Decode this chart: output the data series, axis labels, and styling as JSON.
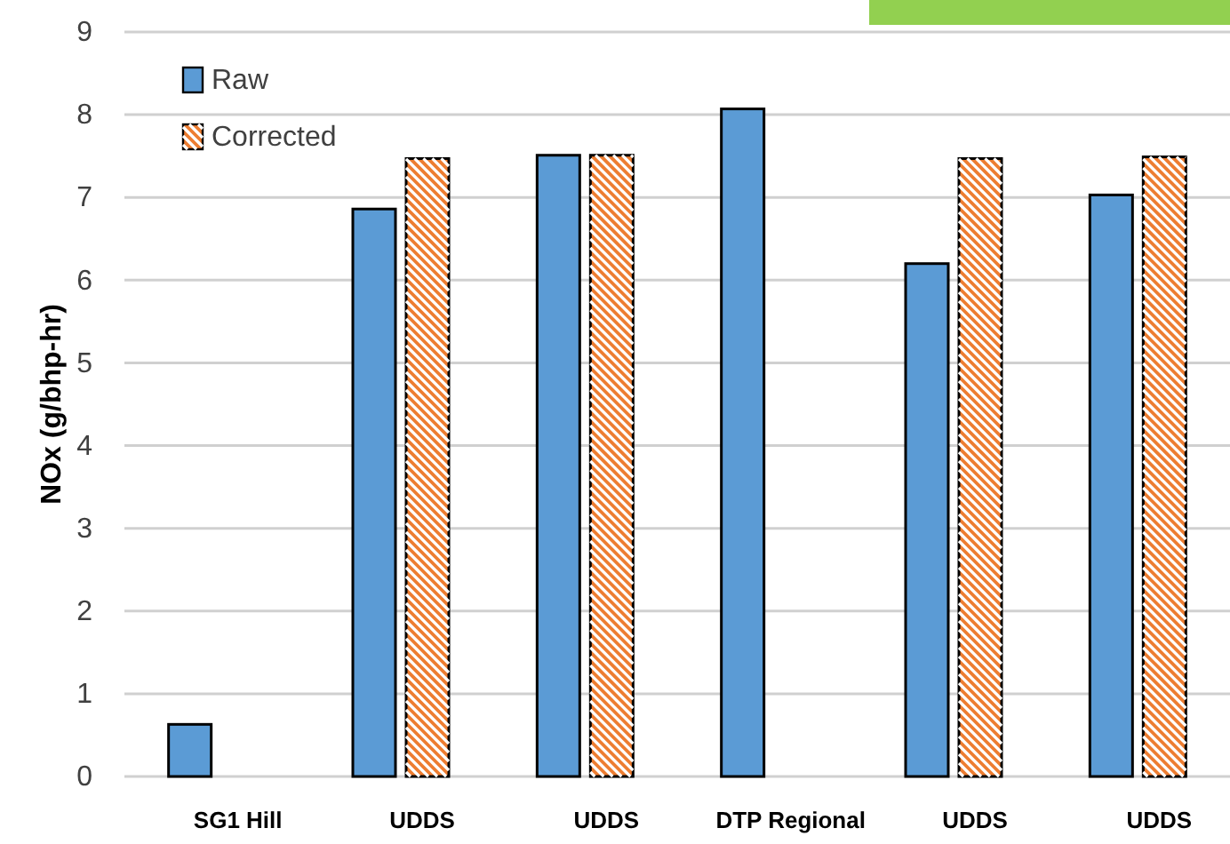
{
  "chart_data": {
    "type": "bar",
    "ylabel": "NOx (g/bhp-hr)",
    "categories": [
      "SG1 Hill",
      "UDDS",
      "UDDS",
      "DTP Regional",
      "UDDS",
      "UDDS"
    ],
    "series": [
      {
        "name": "Raw",
        "color": "#5b9bd5",
        "values": [
          0.63,
          6.86,
          7.51,
          8.07,
          6.2,
          7.03
        ]
      },
      {
        "name": "Corrected",
        "color": "#ed7d31",
        "values": [
          null,
          7.47,
          7.51,
          null,
          7.47,
          7.49
        ]
      }
    ],
    "ylim": [
      0,
      9
    ],
    "yticks": [
      0,
      1,
      2,
      3,
      4,
      5,
      6,
      7,
      8,
      9
    ],
    "grid": "y",
    "legend": "top left"
  }
}
